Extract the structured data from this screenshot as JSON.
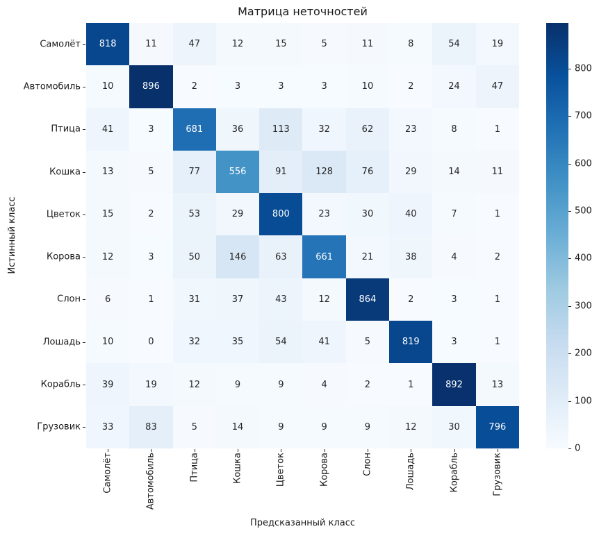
{
  "figure": {
    "title": "Матрица неточностей",
    "xlabel": "Предсказанный класс",
    "ylabel": "Истинный класс"
  },
  "chart_data": {
    "type": "heatmap",
    "title": "Матрица неточностей",
    "xlabel": "Предсказанный класс",
    "ylabel": "Истинный класс",
    "categories": [
      "Самолёт",
      "Автомобиль",
      "Птица",
      "Кошка",
      "Цветок",
      "Корова",
      "Слон",
      "Лошадь",
      "Корабль",
      "Грузовик"
    ],
    "matrix": [
      [
        818,
        11,
        47,
        12,
        15,
        5,
        11,
        8,
        54,
        19
      ],
      [
        10,
        896,
        2,
        3,
        3,
        3,
        10,
        2,
        24,
        47
      ],
      [
        41,
        3,
        681,
        36,
        113,
        32,
        62,
        23,
        8,
        1
      ],
      [
        13,
        5,
        77,
        556,
        91,
        128,
        76,
        29,
        14,
        11
      ],
      [
        15,
        2,
        53,
        29,
        800,
        23,
        30,
        40,
        7,
        1
      ],
      [
        12,
        3,
        50,
        146,
        63,
        661,
        21,
        38,
        4,
        2
      ],
      [
        6,
        1,
        31,
        37,
        43,
        12,
        864,
        2,
        3,
        1
      ],
      [
        10,
        0,
        32,
        35,
        54,
        41,
        5,
        819,
        3,
        1
      ],
      [
        39,
        19,
        12,
        9,
        9,
        4,
        2,
        1,
        892,
        13
      ],
      [
        33,
        83,
        5,
        14,
        9,
        9,
        9,
        12,
        30,
        796
      ]
    ],
    "vmin": 0,
    "vmax": 896,
    "colormap": "Blues",
    "colormap_stops": [
      {
        "t": 0.0,
        "color": "#f7fbff"
      },
      {
        "t": 0.125,
        "color": "#deebf7"
      },
      {
        "t": 0.25,
        "color": "#c6dbef"
      },
      {
        "t": 0.375,
        "color": "#9ecae1"
      },
      {
        "t": 0.5,
        "color": "#6baed6"
      },
      {
        "t": 0.625,
        "color": "#4292c6"
      },
      {
        "t": 0.75,
        "color": "#2171b5"
      },
      {
        "t": 0.875,
        "color": "#08519c"
      },
      {
        "t": 1.0,
        "color": "#08306b"
      }
    ],
    "colorbar_ticks": [
      0,
      100,
      200,
      300,
      400,
      500,
      600,
      700,
      800
    ],
    "annotation_color_dark": "#262626",
    "annotation_color_light": "#ffffff",
    "background": "#ffffff",
    "legend_position": "colorbar-right",
    "grid": false
  }
}
